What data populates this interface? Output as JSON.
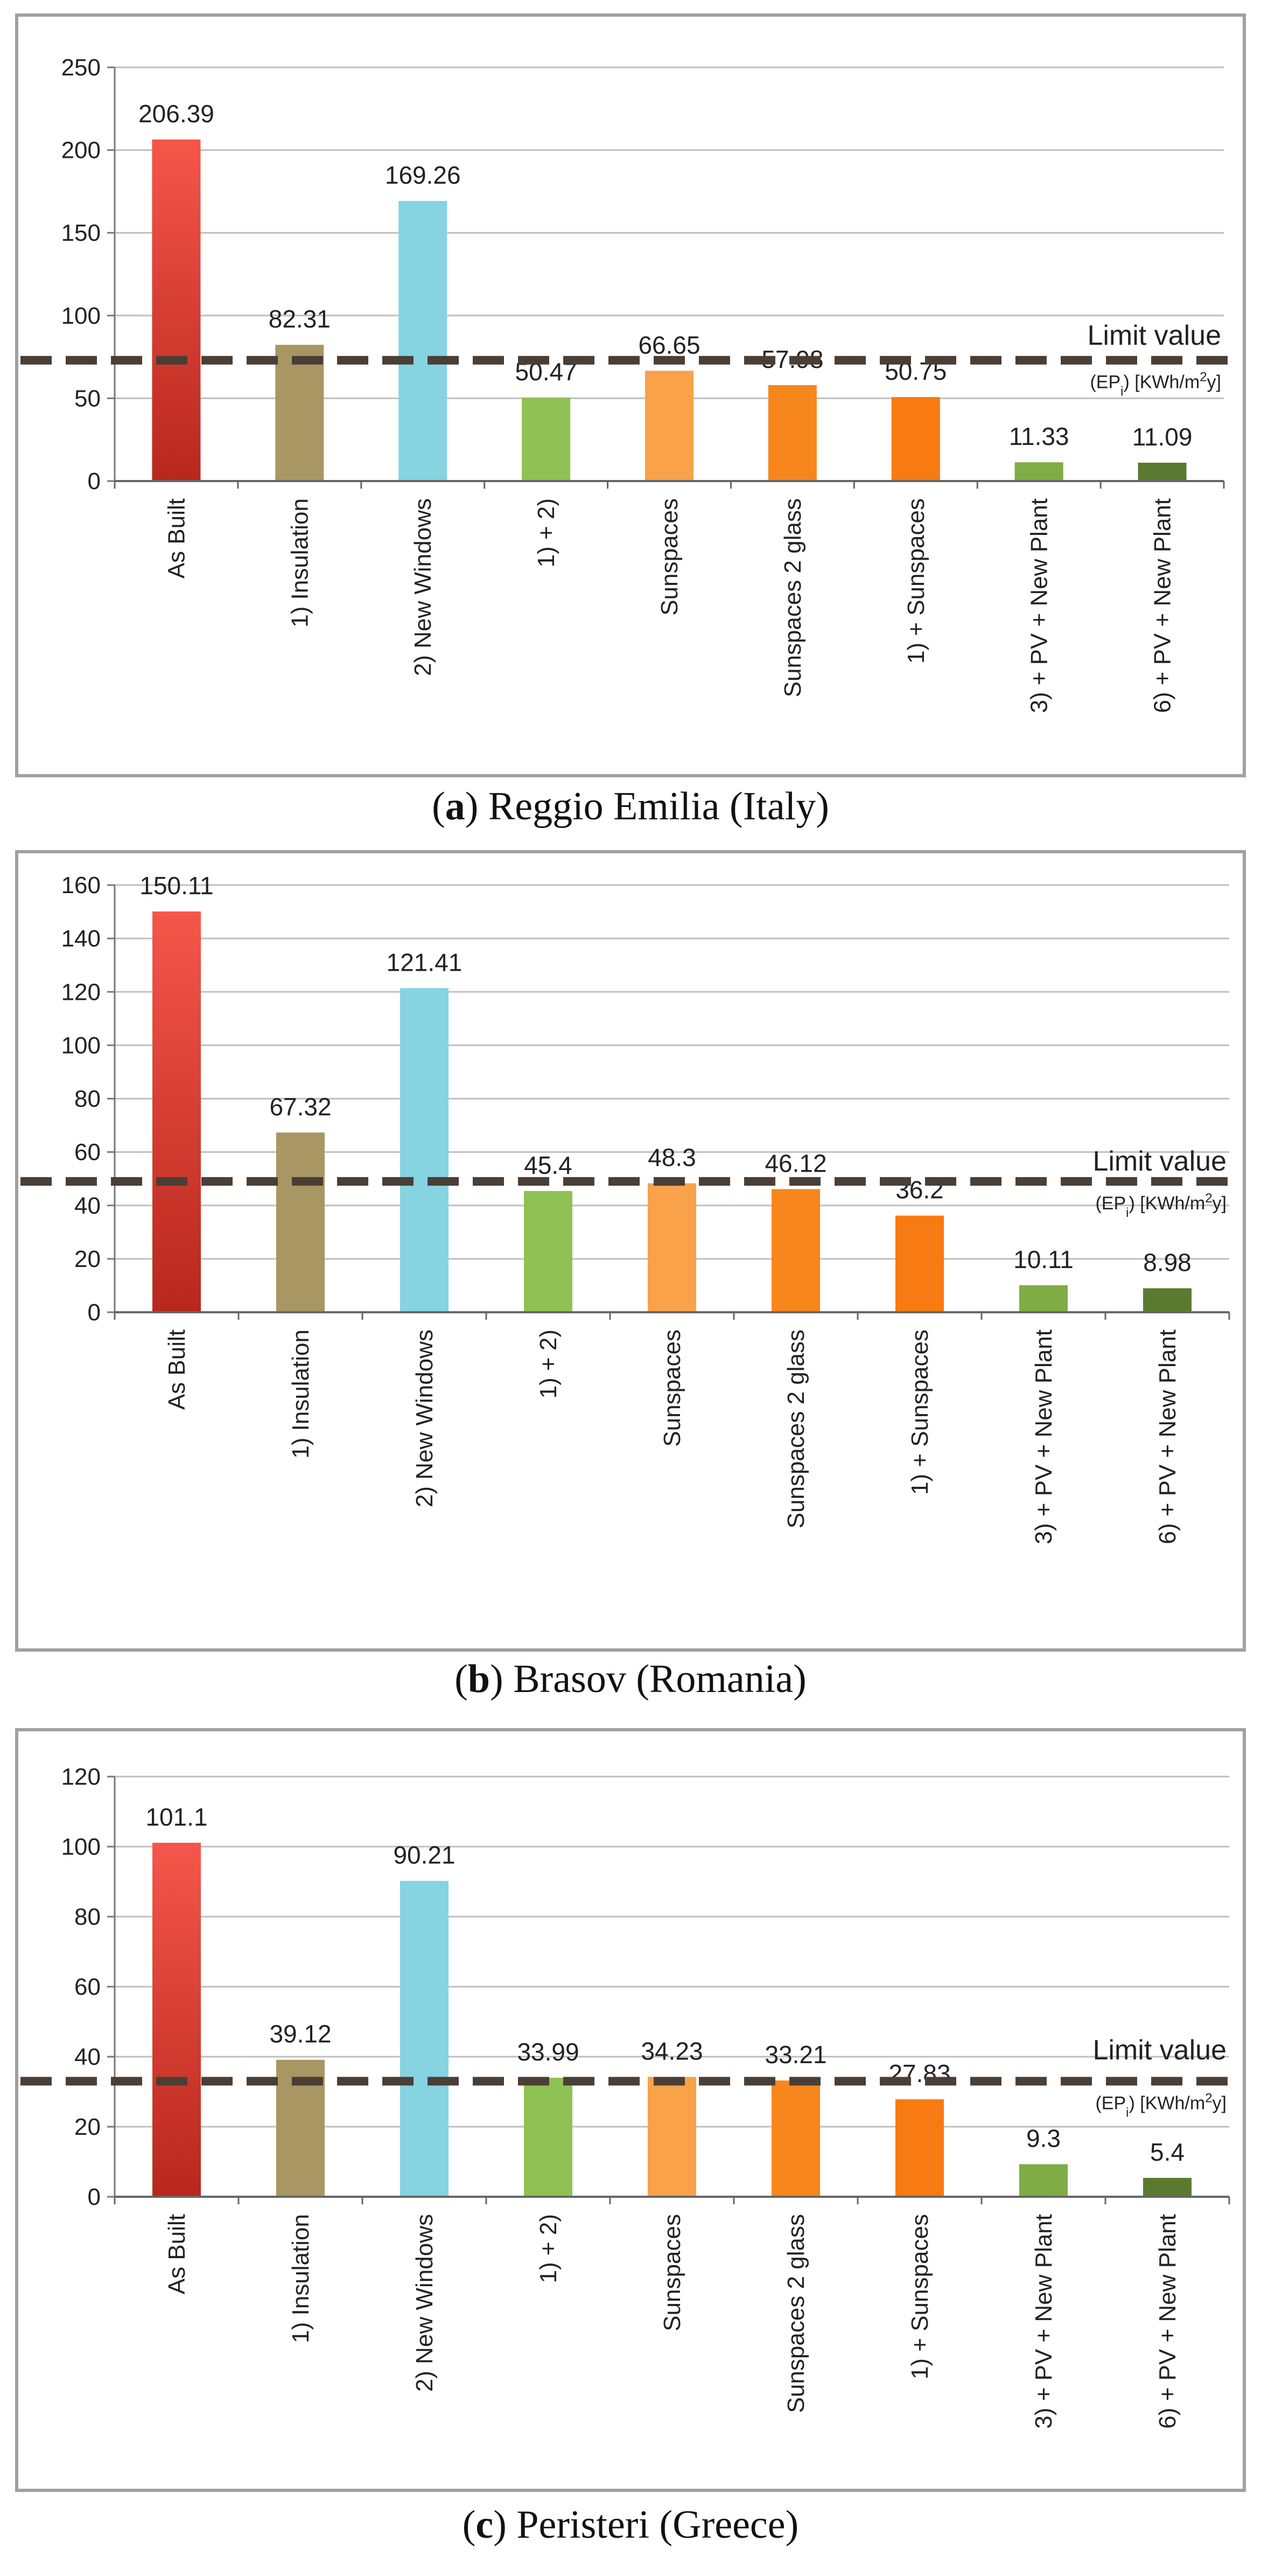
{
  "colors": {
    "as_built": "#e8473b",
    "insulation": "#a89763",
    "new_windows": "#86d3e2",
    "combo": "#8fc154",
    "sunspaces": "#f9a24a",
    "sunspaces_2_glass": "#f7861c",
    "sunspaces_1": "#f77a12",
    "pv3": "#7fac45",
    "pv6": "#5a7a30",
    "limit_line": "#4a3e35",
    "grid": "#bfbfbf",
    "border": "#a0a0a0"
  },
  "categories": [
    "As Built",
    "1) Insulation",
    "2) New Windows",
    "1) + 2)",
    "Sunspaces",
    "Sunspaces 2 glass",
    "1) + Sunspaces",
    "3) + PV + New Plant",
    "6) + PV + New Plant"
  ],
  "limit_label": {
    "line1": "Limit value",
    "line2_prefix": "(EP",
    "line2_sub": "i",
    "line2_mid": ") [KWh/m",
    "line2_sup": "2",
    "line2_suffix": "y]"
  },
  "chart_data": [
    {
      "type": "bar",
      "caption_letter": "a",
      "caption_text": "Reggio Emilia (Italy)",
      "values": [
        206.39,
        82.31,
        169.26,
        50.47,
        66.65,
        57.98,
        50.75,
        11.33,
        11.09
      ],
      "value_labels": [
        "206.39",
        "82.31",
        "169.26",
        "50.47",
        "66.65",
        "57.98",
        "50.75",
        "11.33",
        "11.09"
      ],
      "ylim": [
        0,
        250
      ],
      "yticks": [
        0,
        50,
        100,
        150,
        200,
        250
      ],
      "limit_value": 73
    },
    {
      "type": "bar",
      "caption_letter": "b",
      "caption_text": "Brasov (Romania)",
      "values": [
        150.11,
        67.32,
        121.41,
        45.4,
        48.3,
        46.12,
        36.2,
        10.11,
        8.98
      ],
      "value_labels": [
        "150.11",
        "67.32",
        "121.41",
        "45.4",
        "48.3",
        "46.12",
        "36.2",
        "10.11",
        "8.98"
      ],
      "ylim": [
        0,
        160
      ],
      "yticks": [
        0,
        20,
        40,
        60,
        80,
        100,
        120,
        140,
        160
      ],
      "limit_value": 49
    },
    {
      "type": "bar",
      "caption_letter": "c",
      "caption_text": "Peristeri (Greece)",
      "values": [
        101.1,
        39.12,
        90.21,
        33.99,
        34.23,
        33.21,
        27.83,
        9.3,
        5.4
      ],
      "value_labels": [
        "101.1",
        "39.12",
        "90.21",
        "33.99",
        "34.23",
        "33.21",
        "27.83",
        "9.3",
        "5.4"
      ],
      "ylim": [
        0,
        120
      ],
      "yticks": [
        0,
        20,
        40,
        60,
        80,
        100,
        120
      ],
      "limit_value": 33
    }
  ]
}
